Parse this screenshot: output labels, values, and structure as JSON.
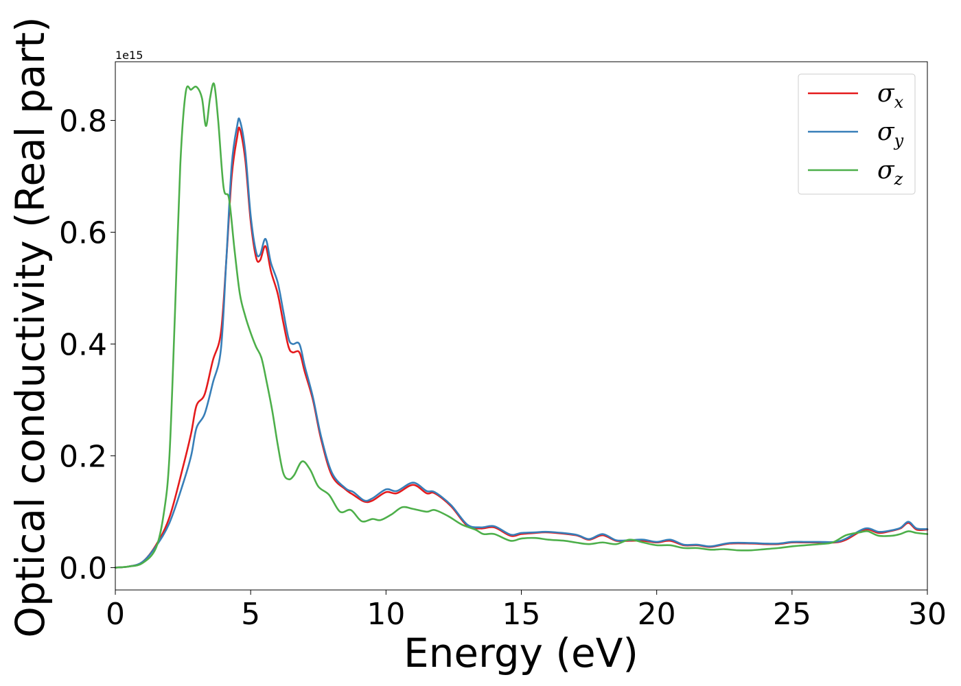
{
  "chart_data": {
    "type": "line",
    "xlabel": "Energy (eV)",
    "ylabel": "Optical conductivity (Real part)",
    "y_offset_text": "1e15",
    "y_scale": 1000000000000000.0,
    "xlim": [
      0,
      30
    ],
    "ylim": [
      -0.04,
      0.905
    ],
    "x_ticks": [
      0,
      5,
      10,
      15,
      20,
      25,
      30
    ],
    "x_tick_labels": [
      "0",
      "5",
      "10",
      "15",
      "20",
      "25",
      "30"
    ],
    "y_ticks": [
      0.0,
      0.2,
      0.4,
      0.6,
      0.8
    ],
    "y_tick_labels": [
      "0.0",
      "0.2",
      "0.4",
      "0.6",
      "0.8"
    ],
    "grid": false,
    "legend_position": "top-right",
    "series": [
      {
        "name": "σx",
        "symbol": "σ",
        "subscript": "x",
        "color": "#e41a1c",
        "points": [
          [
            0,
            0
          ],
          [
            0.5,
            0.002
          ],
          [
            1,
            0.01
          ],
          [
            1.5,
            0.04
          ],
          [
            2,
            0.09
          ],
          [
            2.5,
            0.18
          ],
          [
            2.8,
            0.24
          ],
          [
            3,
            0.29
          ],
          [
            3.3,
            0.31
          ],
          [
            3.6,
            0.37
          ],
          [
            3.9,
            0.42
          ],
          [
            4.1,
            0.55
          ],
          [
            4.3,
            0.7
          ],
          [
            4.5,
            0.77
          ],
          [
            4.6,
            0.785
          ],
          [
            4.8,
            0.73
          ],
          [
            5,
            0.62
          ],
          [
            5.2,
            0.555
          ],
          [
            5.35,
            0.55
          ],
          [
            5.55,
            0.575
          ],
          [
            5.75,
            0.53
          ],
          [
            6,
            0.49
          ],
          [
            6.2,
            0.44
          ],
          [
            6.4,
            0.395
          ],
          [
            6.55,
            0.385
          ],
          [
            6.8,
            0.385
          ],
          [
            7,
            0.35
          ],
          [
            7.3,
            0.3
          ],
          [
            7.6,
            0.23
          ],
          [
            8,
            0.165
          ],
          [
            8.5,
            0.14
          ],
          [
            8.8,
            0.13
          ],
          [
            9.2,
            0.118
          ],
          [
            9.5,
            0.12
          ],
          [
            10,
            0.135
          ],
          [
            10.4,
            0.133
          ],
          [
            11,
            0.148
          ],
          [
            11.5,
            0.133
          ],
          [
            11.8,
            0.133
          ],
          [
            12.4,
            0.11
          ],
          [
            13,
            0.075
          ],
          [
            13.5,
            0.07
          ],
          [
            14,
            0.072
          ],
          [
            14.6,
            0.057
          ],
          [
            15,
            0.06
          ],
          [
            15.5,
            0.062
          ],
          [
            16,
            0.063
          ],
          [
            17,
            0.058
          ],
          [
            17.5,
            0.05
          ],
          [
            18,
            0.058
          ],
          [
            18.5,
            0.048
          ],
          [
            19,
            0.048
          ],
          [
            19.5,
            0.048
          ],
          [
            20,
            0.045
          ],
          [
            20.5,
            0.048
          ],
          [
            21,
            0.04
          ],
          [
            21.5,
            0.04
          ],
          [
            22,
            0.037
          ],
          [
            22.7,
            0.043
          ],
          [
            23.5,
            0.043
          ],
          [
            24,
            0.042
          ],
          [
            24.5,
            0.042
          ],
          [
            25,
            0.045
          ],
          [
            25.5,
            0.045
          ],
          [
            26,
            0.045
          ],
          [
            26.6,
            0.045
          ],
          [
            27,
            0.05
          ],
          [
            27.7,
            0.068
          ],
          [
            28.2,
            0.062
          ],
          [
            28.6,
            0.065
          ],
          [
            29,
            0.07
          ],
          [
            29.3,
            0.08
          ],
          [
            29.6,
            0.068
          ],
          [
            30,
            0.068
          ]
        ]
      },
      {
        "name": "σy",
        "symbol": "σ",
        "subscript": "y",
        "color": "#377eb8",
        "points": [
          [
            0,
            0
          ],
          [
            0.5,
            0.002
          ],
          [
            1,
            0.01
          ],
          [
            1.5,
            0.038
          ],
          [
            2,
            0.08
          ],
          [
            2.5,
            0.15
          ],
          [
            2.8,
            0.2
          ],
          [
            3,
            0.25
          ],
          [
            3.3,
            0.275
          ],
          [
            3.6,
            0.33
          ],
          [
            3.9,
            0.39
          ],
          [
            4.1,
            0.55
          ],
          [
            4.3,
            0.72
          ],
          [
            4.5,
            0.79
          ],
          [
            4.6,
            0.8
          ],
          [
            4.8,
            0.745
          ],
          [
            5,
            0.63
          ],
          [
            5.2,
            0.565
          ],
          [
            5.35,
            0.56
          ],
          [
            5.55,
            0.588
          ],
          [
            5.75,
            0.545
          ],
          [
            6,
            0.51
          ],
          [
            6.2,
            0.46
          ],
          [
            6.4,
            0.41
          ],
          [
            6.55,
            0.4
          ],
          [
            6.8,
            0.4
          ],
          [
            7,
            0.36
          ],
          [
            7.3,
            0.305
          ],
          [
            7.6,
            0.235
          ],
          [
            8,
            0.17
          ],
          [
            8.5,
            0.142
          ],
          [
            8.8,
            0.135
          ],
          [
            9.2,
            0.12
          ],
          [
            9.5,
            0.124
          ],
          [
            10,
            0.14
          ],
          [
            10.4,
            0.137
          ],
          [
            11,
            0.152
          ],
          [
            11.5,
            0.137
          ],
          [
            11.8,
            0.135
          ],
          [
            12.4,
            0.112
          ],
          [
            13,
            0.077
          ],
          [
            13.5,
            0.072
          ],
          [
            14,
            0.074
          ],
          [
            14.6,
            0.059
          ],
          [
            15,
            0.062
          ],
          [
            15.5,
            0.063
          ],
          [
            16,
            0.064
          ],
          [
            17,
            0.059
          ],
          [
            17.5,
            0.051
          ],
          [
            18,
            0.06
          ],
          [
            18.5,
            0.049
          ],
          [
            19,
            0.049
          ],
          [
            19.5,
            0.05
          ],
          [
            20,
            0.046
          ],
          [
            20.5,
            0.05
          ],
          [
            21,
            0.041
          ],
          [
            21.5,
            0.041
          ],
          [
            22,
            0.038
          ],
          [
            22.7,
            0.044
          ],
          [
            23.5,
            0.044
          ],
          [
            24,
            0.043
          ],
          [
            24.5,
            0.043
          ],
          [
            25,
            0.046
          ],
          [
            25.5,
            0.046
          ],
          [
            26,
            0.046
          ],
          [
            26.6,
            0.046
          ],
          [
            27,
            0.052
          ],
          [
            27.7,
            0.07
          ],
          [
            28.2,
            0.064
          ],
          [
            28.6,
            0.066
          ],
          [
            29,
            0.071
          ],
          [
            29.3,
            0.082
          ],
          [
            29.6,
            0.07
          ],
          [
            30,
            0.069
          ]
        ]
      },
      {
        "name": "σz",
        "symbol": "σ",
        "subscript": "z",
        "color": "#4daf4a",
        "points": [
          [
            0,
            0
          ],
          [
            0.5,
            0.002
          ],
          [
            1,
            0.008
          ],
          [
            1.5,
            0.035
          ],
          [
            1.8,
            0.1
          ],
          [
            2,
            0.2
          ],
          [
            2.2,
            0.45
          ],
          [
            2.4,
            0.72
          ],
          [
            2.6,
            0.85
          ],
          [
            2.8,
            0.855
          ],
          [
            3,
            0.86
          ],
          [
            3.2,
            0.84
          ],
          [
            3.35,
            0.79
          ],
          [
            3.5,
            0.84
          ],
          [
            3.65,
            0.865
          ],
          [
            3.8,
            0.8
          ],
          [
            4,
            0.68
          ],
          [
            4.2,
            0.66
          ],
          [
            4.4,
            0.57
          ],
          [
            4.6,
            0.49
          ],
          [
            4.8,
            0.45
          ],
          [
            5,
            0.42
          ],
          [
            5.2,
            0.395
          ],
          [
            5.4,
            0.375
          ],
          [
            5.6,
            0.33
          ],
          [
            5.8,
            0.28
          ],
          [
            6,
            0.22
          ],
          [
            6.2,
            0.17
          ],
          [
            6.4,
            0.158
          ],
          [
            6.6,
            0.165
          ],
          [
            6.9,
            0.19
          ],
          [
            7.2,
            0.175
          ],
          [
            7.5,
            0.145
          ],
          [
            7.9,
            0.13
          ],
          [
            8.3,
            0.1
          ],
          [
            8.7,
            0.103
          ],
          [
            9.1,
            0.083
          ],
          [
            9.5,
            0.087
          ],
          [
            9.8,
            0.085
          ],
          [
            10.2,
            0.095
          ],
          [
            10.6,
            0.108
          ],
          [
            11,
            0.105
          ],
          [
            11.5,
            0.1
          ],
          [
            11.8,
            0.103
          ],
          [
            12.3,
            0.092
          ],
          [
            12.8,
            0.077
          ],
          [
            13.3,
            0.068
          ],
          [
            13.6,
            0.06
          ],
          [
            14,
            0.06
          ],
          [
            14.6,
            0.048
          ],
          [
            15,
            0.052
          ],
          [
            15.5,
            0.053
          ],
          [
            16,
            0.05
          ],
          [
            16.6,
            0.048
          ],
          [
            17,
            0.045
          ],
          [
            17.5,
            0.042
          ],
          [
            18,
            0.045
          ],
          [
            18.5,
            0.042
          ],
          [
            19,
            0.05
          ],
          [
            19.5,
            0.045
          ],
          [
            20,
            0.04
          ],
          [
            20.5,
            0.04
          ],
          [
            21,
            0.035
          ],
          [
            21.5,
            0.035
          ],
          [
            22,
            0.032
          ],
          [
            22.5,
            0.033
          ],
          [
            23,
            0.031
          ],
          [
            23.5,
            0.031
          ],
          [
            24,
            0.033
          ],
          [
            24.5,
            0.035
          ],
          [
            25,
            0.038
          ],
          [
            25.5,
            0.04
          ],
          [
            26,
            0.042
          ],
          [
            26.5,
            0.045
          ],
          [
            27,
            0.058
          ],
          [
            27.5,
            0.063
          ],
          [
            27.8,
            0.065
          ],
          [
            28.2,
            0.057
          ],
          [
            28.7,
            0.057
          ],
          [
            29,
            0.06
          ],
          [
            29.3,
            0.065
          ],
          [
            29.6,
            0.062
          ],
          [
            30,
            0.06
          ]
        ]
      }
    ]
  }
}
